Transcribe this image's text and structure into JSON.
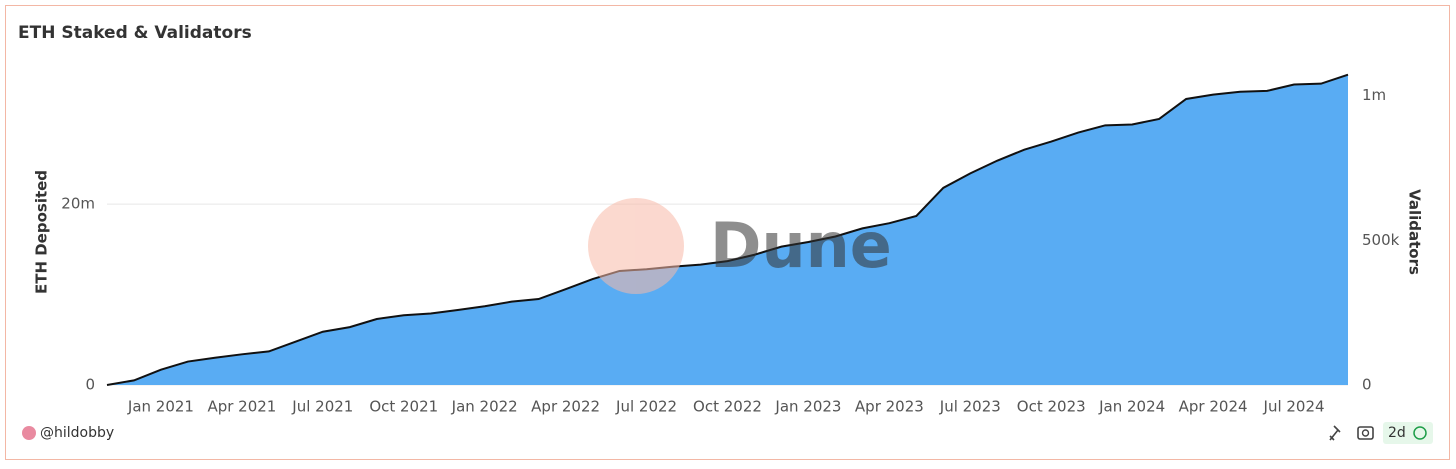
{
  "chart_data": {
    "type": "area",
    "title": "ETH Staked & Validators",
    "ylabel": "ETH Deposited",
    "y2label": "Validators",
    "x": [
      "2020-11",
      "2020-12",
      "2021-01",
      "2021-02",
      "2021-03",
      "2021-04",
      "2021-05",
      "2021-06",
      "2021-07",
      "2021-08",
      "2021-09",
      "2021-10",
      "2021-11",
      "2021-12",
      "2022-01",
      "2022-02",
      "2022-03",
      "2022-04",
      "2022-05",
      "2022-06",
      "2022-07",
      "2022-08",
      "2022-09",
      "2022-10",
      "2022-11",
      "2022-12",
      "2023-01",
      "2023-02",
      "2023-03",
      "2023-04",
      "2023-05",
      "2023-06",
      "2023-07",
      "2023-08",
      "2023-09",
      "2023-10",
      "2023-11",
      "2023-12",
      "2024-01",
      "2024-02",
      "2024-03",
      "2024-04",
      "2024-05",
      "2024-06",
      "2024-07",
      "2024-08",
      "2024-09"
    ],
    "series": [
      {
        "color": "#59acf3",
        "values": [
          0,
          500000,
          1700000,
          2600000,
          3000000,
          3400000,
          3700000,
          4800000,
          5900000,
          6400000,
          7300000,
          7700000,
          7900000,
          8300000,
          8700000,
          9200000,
          9500000,
          10600000,
          11700000,
          12600000,
          12800000,
          13100000,
          13300000,
          13700000,
          14400000,
          15300000,
          15800000,
          16400000,
          17300000,
          17900000,
          18700000,
          21800000,
          23400000,
          24800000,
          26000000,
          26900000,
          27900000,
          28700000,
          28800000,
          29400000,
          31600000,
          32100000,
          32400000,
          32500000,
          33200000,
          33300000,
          34300000
        ]
      },
      {
        "color": "#111111",
        "axis": "y2",
        "values": [
          0,
          16000,
          53000,
          81000,
          94000,
          106000,
          116000,
          150000,
          184000,
          200000,
          228000,
          241000,
          247000,
          259000,
          272000,
          288000,
          297000,
          331000,
          366000,
          394000,
          400000,
          409000,
          416000,
          428000,
          450000,
          478000,
          494000,
          513000,
          541000,
          559000,
          584000,
          681000,
          731000,
          775000,
          813000,
          841000,
          872000,
          897000,
          900000,
          919000,
          988000,
          1003000,
          1013000,
          1016000,
          1038000,
          1041000,
          1072000
        ]
      }
    ],
    "xlim": [
      "2020-11",
      "2024-09"
    ],
    "xticks": [
      {
        "value": "2021-01",
        "label": "Jan 2021"
      },
      {
        "value": "2021-04",
        "label": "Apr 2021"
      },
      {
        "value": "2021-07",
        "label": "Jul 2021"
      },
      {
        "value": "2021-10",
        "label": "Oct 2021"
      },
      {
        "value": "2022-01",
        "label": "Jan 2022"
      },
      {
        "value": "2022-04",
        "label": "Apr 2022"
      },
      {
        "value": "2022-07",
        "label": "Jul 2022"
      },
      {
        "value": "2022-10",
        "label": "Oct 2022"
      },
      {
        "value": "2023-01",
        "label": "Jan 2023"
      },
      {
        "value": "2023-04",
        "label": "Apr 2023"
      },
      {
        "value": "2023-07",
        "label": "Jul 2023"
      },
      {
        "value": "2023-10",
        "label": "Oct 2023"
      },
      {
        "value": "2024-01",
        "label": "Jan 2024"
      },
      {
        "value": "2024-04",
        "label": "Apr 2024"
      },
      {
        "value": "2024-07",
        "label": "Jul 2024"
      }
    ],
    "ylim": [
      0,
      36500000
    ],
    "yticks": [
      0,
      {
        "value": 20000000,
        "label": "20m"
      }
    ],
    "y2lim": [
      0,
      1140000
    ],
    "y2ticks": [
      0,
      {
        "value": 500000,
        "label": "500k"
      },
      {
        "value": 1000000,
        "label": "1m"
      }
    ],
    "grid": true
  },
  "watermark": "Dune",
  "author": "@hildobby",
  "freshness": "2d"
}
